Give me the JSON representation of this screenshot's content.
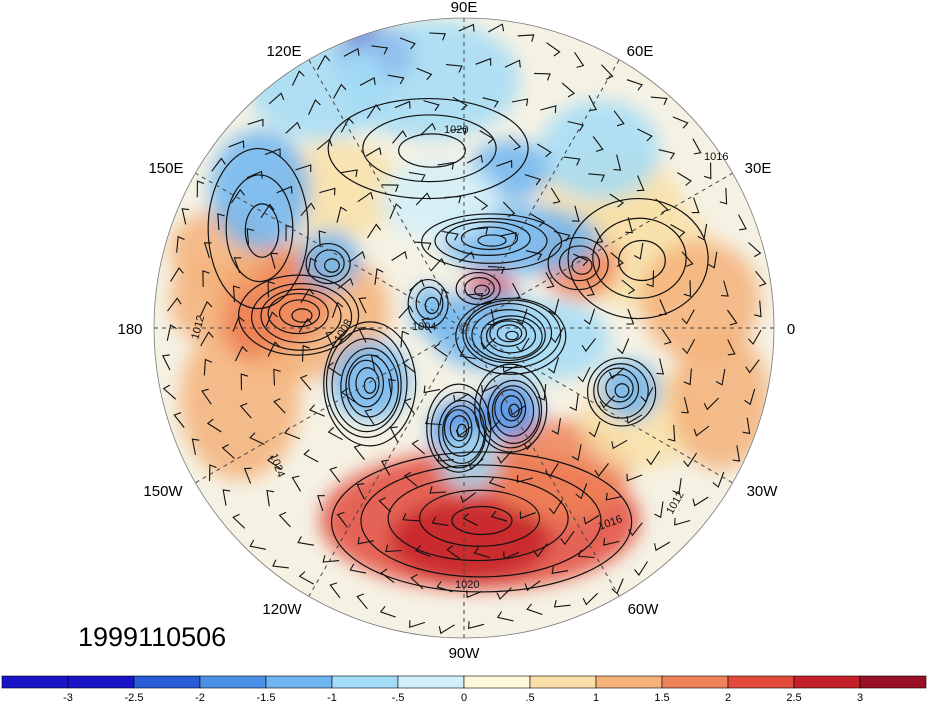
{
  "map": {
    "timestamp": "1999110506",
    "longitude_labels": {
      "lon_90e": "90E",
      "lon_120e": "120E",
      "lon_60e": "60E",
      "lon_150e": "150E",
      "lon_30e": "30E",
      "lon_180": "180",
      "lon_0": "0",
      "lon_150w": "150W",
      "lon_30w": "30W",
      "lon_120w": "120W",
      "lon_60w": "60W",
      "lon_90w": "90W"
    },
    "contour_labels": [
      "1012",
      "1016",
      "1020",
      "1024",
      "1008",
      "1004",
      "1020",
      "1016",
      "1012"
    ],
    "colorbar": {
      "ticks": [
        "-3",
        "-2.5",
        "-2",
        "-1.5",
        "-1",
        "-.5",
        "0",
        ".5",
        "1",
        "1.5",
        "2",
        "2.5",
        "3"
      ],
      "colors": [
        "#1a14c8",
        "#2a5cd8",
        "#4a8ee6",
        "#6fb5f0",
        "#a3dcf6",
        "#d2f0f9",
        "#fdf7dc",
        "#f8e0a8",
        "#f4b27a",
        "#ee8258",
        "#e34a3c",
        "#c4202a",
        "#9a1024"
      ]
    }
  }
}
